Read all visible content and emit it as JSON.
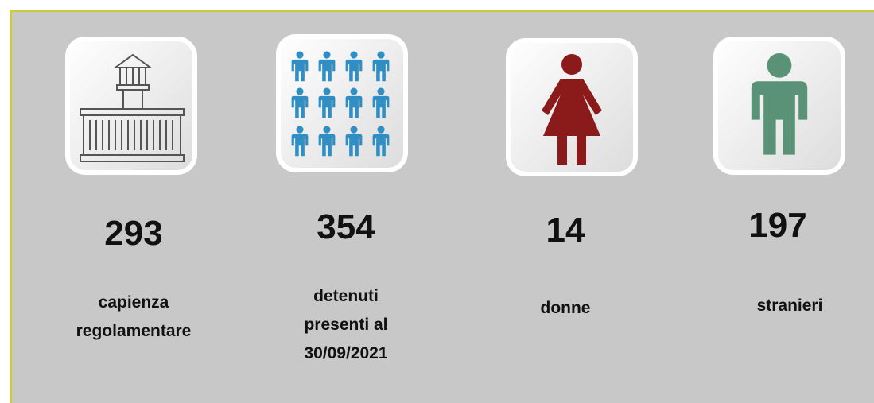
{
  "items": [
    {
      "value": 293,
      "label": "capienza regolamentare"
    },
    {
      "value": 354,
      "label": "detenuti presenti al 30/09/2021"
    },
    {
      "value": 14,
      "label": "donne"
    },
    {
      "value": 197,
      "label": "stranieri"
    }
  ]
}
